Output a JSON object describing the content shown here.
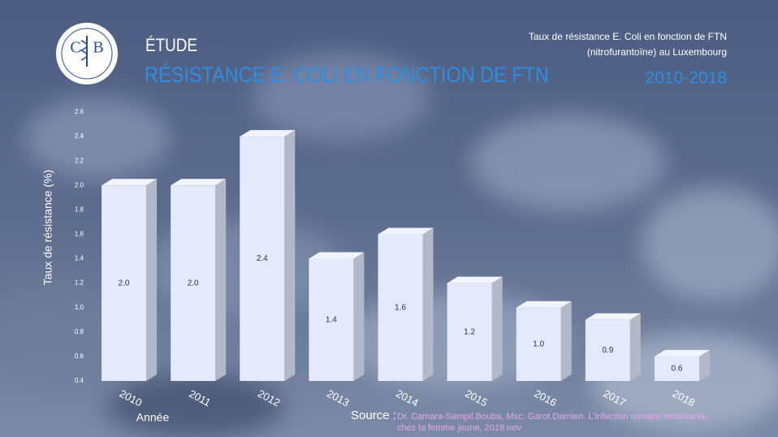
{
  "logo": {
    "left": "C",
    "right": "B"
  },
  "header": {
    "kicker": "ÉTUDE",
    "title": "RÉSISTANCE E. COLI EN FONCTION DE FTN",
    "note": [
      "Taux de résistance E. Coli en fonction de FTN",
      "(nitrofurantoïne) au Luxembourg"
    ],
    "period": "2010-2018"
  },
  "chart_data": {
    "type": "bar",
    "y_label": "Taux de résistance (%)",
    "x_label": "Année",
    "categories": [
      "2010",
      "2011",
      "2012",
      "2013",
      "2014",
      "2015",
      "2016",
      "2017",
      "2018"
    ],
    "values": [
      2.0,
      2.0,
      2.4,
      1.4,
      1.6,
      1.2,
      1.0,
      0.9,
      0.6
    ],
    "value_labels": [
      "2.0",
      "2.0",
      "2.4",
      "1.4",
      "1.6",
      "1.2",
      "1.0",
      "0.9",
      "0.6"
    ],
    "color": "#e4e9fb",
    "ylim": [
      0.4,
      2.6
    ],
    "yticks": [
      0.4,
      0.6,
      0.8,
      {
        "value": 1.0,
        "label": "1.0"
      },
      1.2,
      1.4,
      1.6,
      1.8,
      {
        "value": 2.0,
        "label": "2.0"
      },
      2.2,
      2.4,
      2.6
    ]
  },
  "source": {
    "label": "Source :",
    "lines": [
      "Dr. Camara-Sampil.Bouba, Msc. Garot.Damien. L'infection urinaire récidivante",
      "chez la femme jeune, 2018 nov"
    ]
  }
}
